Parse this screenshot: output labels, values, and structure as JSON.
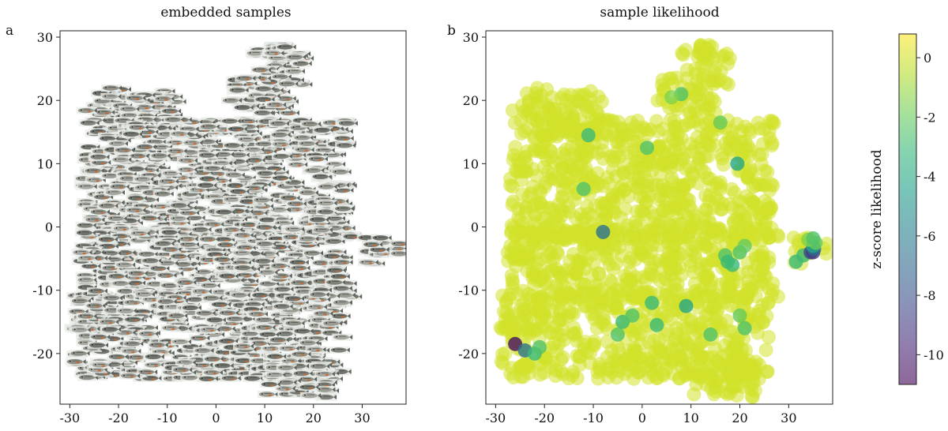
{
  "chart_data": [
    {
      "type": "scatter",
      "panel_label": "a",
      "title": "embedded samples",
      "xlabel": "",
      "ylabel": "",
      "xlim": [
        -32,
        39
      ],
      "ylim": [
        -28,
        31
      ],
      "xticks": [
        -30,
        -20,
        -10,
        0,
        10,
        20,
        30
      ],
      "yticks": [
        -20,
        -10,
        0,
        10,
        20,
        30
      ],
      "xtick_labels": [
        "-30",
        "-20",
        "-10",
        "0",
        "10",
        "20",
        "30"
      ],
      "ytick_labels": [
        "-20",
        "-10",
        "0",
        "10",
        "20",
        "30"
      ],
      "marker": "fish-thumbnail",
      "grid": false,
      "point_cloud": [
        {
          "x_range": [
            8,
            18
          ],
          "y_range": [
            22,
            29
          ]
        },
        {
          "x_range": [
            3,
            15
          ],
          "y_range": [
            18,
            24
          ]
        },
        {
          "x_range": [
            -27,
            -8
          ],
          "y_range": [
            14,
            22
          ]
        },
        {
          "x_range": [
            -27,
            27
          ],
          "y_range": [
            -2,
            17
          ]
        },
        {
          "x_range": [
            -27,
            28
          ],
          "y_range": [
            -12,
            0
          ]
        },
        {
          "x_range": [
            -29,
            26
          ],
          "y_range": [
            -24,
            -10
          ]
        },
        {
          "x_range": [
            10,
            24
          ],
          "y_range": [
            -27,
            -20
          ]
        },
        {
          "x_range": [
            31,
            38
          ],
          "y_range": [
            -6,
            -1.5
          ]
        },
        {
          "x_range": [
            -28,
            -24
          ],
          "y_range": [
            -5.5,
            -3.5
          ]
        }
      ]
    },
    {
      "type": "scatter",
      "panel_label": "b",
      "title": "sample likelihood",
      "xlabel": "",
      "ylabel": "",
      "xlim": [
        -32,
        39
      ],
      "ylim": [
        -28,
        31
      ],
      "xticks": [
        -30,
        -20,
        -10,
        0,
        10,
        20,
        30
      ],
      "yticks": [
        -20,
        -10,
        0,
        10,
        20,
        30
      ],
      "xtick_labels": [
        "-30",
        "-20",
        "-10",
        "0",
        "10",
        "20",
        "30"
      ],
      "ytick_labels": [
        "-20",
        "-10",
        "0",
        "10",
        "20",
        "30"
      ],
      "marker": "circle",
      "marker_alpha": 0.55,
      "color_variable": "z-score likelihood",
      "grid": false,
      "background_value": 0,
      "points": [
        {
          "x": -26,
          "y": -18.5,
          "z": -10.5
        },
        {
          "x": -24,
          "y": -19.5,
          "z": -6.5
        },
        {
          "x": -22,
          "y": -20,
          "z": -3
        },
        {
          "x": -21,
          "y": -19,
          "z": -2.5
        },
        {
          "x": -25.5,
          "y": -4.5,
          "z": 0
        },
        {
          "x": -8,
          "y": -0.8,
          "z": -6.5
        },
        {
          "x": -5,
          "y": -17,
          "z": -2.5
        },
        {
          "x": -4,
          "y": -15,
          "z": -3
        },
        {
          "x": -2,
          "y": -14,
          "z": -2.5
        },
        {
          "x": 2,
          "y": -12,
          "z": -3
        },
        {
          "x": 3,
          "y": -15.5,
          "z": -3
        },
        {
          "x": 9,
          "y": -12.5,
          "z": -4
        },
        {
          "x": 14,
          "y": -17,
          "z": -2.5
        },
        {
          "x": 20,
          "y": -14,
          "z": -2
        },
        {
          "x": 21,
          "y": -16,
          "z": -2.5
        },
        {
          "x": 19.5,
          "y": 10,
          "z": -4
        },
        {
          "x": 17,
          "y": -4.5,
          "z": -2.5
        },
        {
          "x": 17.5,
          "y": -5.5,
          "z": -3
        },
        {
          "x": 18.5,
          "y": -6,
          "z": -3
        },
        {
          "x": 20,
          "y": -4,
          "z": -2.5
        },
        {
          "x": 21,
          "y": -3,
          "z": -2
        },
        {
          "x": 1,
          "y": 12.5,
          "z": -2.5
        },
        {
          "x": -11,
          "y": 14.5,
          "z": -3
        },
        {
          "x": -12,
          "y": 6,
          "z": -2.5
        },
        {
          "x": 31.5,
          "y": -5.5,
          "z": -3
        },
        {
          "x": 33,
          "y": -4.5,
          "z": -3
        },
        {
          "x": 34.5,
          "y": -4,
          "z": -8.5
        },
        {
          "x": 35,
          "y": -4,
          "z": -9
        },
        {
          "x": 35.2,
          "y": -3.5,
          "z": -7
        },
        {
          "x": 35,
          "y": -3,
          "z": -4
        },
        {
          "x": 35.5,
          "y": -2.5,
          "z": -2
        },
        {
          "x": 34,
          "y": -2,
          "z": -1.5
        },
        {
          "x": 35,
          "y": -1.8,
          "z": -2.5
        },
        {
          "x": 16,
          "y": 16.5,
          "z": -2
        },
        {
          "x": 8,
          "y": 21,
          "z": -2.5
        },
        {
          "x": 6,
          "y": 20.5,
          "z": -1.5
        }
      ]
    }
  ],
  "colorbar": {
    "label": "z-score likelihood",
    "range": [
      -11,
      0.8
    ],
    "ticks": [
      0,
      -2,
      -4,
      -6,
      -8,
      -10
    ],
    "tick_labels": [
      "0",
      "-2",
      "-4",
      "-6",
      "-8",
      "-10"
    ],
    "colormap": [
      "#440154",
      "#482878",
      "#3e4989",
      "#31688e",
      "#26828e",
      "#1f9e89",
      "#35b779",
      "#6ece58",
      "#b5de2b",
      "#fde725"
    ],
    "alpha": 0.6
  }
}
